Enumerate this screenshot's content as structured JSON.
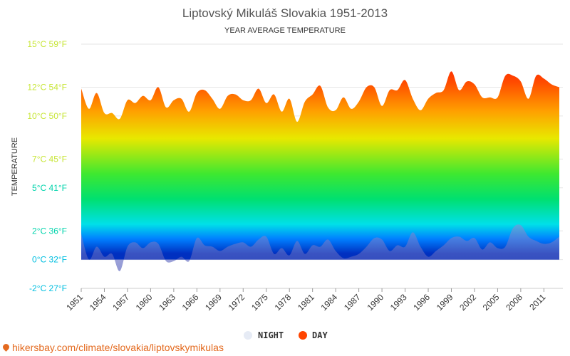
{
  "chart_data": {
    "type": "area",
    "title": "Liptovský Mikuláš Slovakia 1951-2013",
    "subtitle": "YEAR AVERAGE TEMPERATURE",
    "ylabel": "TEMPERATURE",
    "xlabel": "",
    "ylim": [
      -2,
      15
    ],
    "y_ticks": [
      {
        "value": 15,
        "label": "15°C 59°F",
        "color": "#c8e639"
      },
      {
        "value": 12,
        "label": "12°C 54°F",
        "color": "#c8e639"
      },
      {
        "value": 10,
        "label": "10°C 50°F",
        "color": "#c8e639"
      },
      {
        "value": 7,
        "label": "7°C 45°F",
        "color": "#c8e639"
      },
      {
        "value": 5,
        "label": "5°C 41°F",
        "color": "#00d4ac"
      },
      {
        "value": 2,
        "label": "2°C 36°F",
        "color": "#00d4ac"
      },
      {
        "value": 0,
        "label": "0°C 32°F",
        "color": "#00bfe0"
      },
      {
        "value": -2,
        "label": "-2°C 27°F",
        "color": "#00bfe0"
      }
    ],
    "x_tick_labels": [
      "1951",
      "1954",
      "1957",
      "1960",
      "1963",
      "1966",
      "1969",
      "1972",
      "1975",
      "1978",
      "1981",
      "1984",
      "1987",
      "1990",
      "1993",
      "1996",
      "1999",
      "2002",
      "2005",
      "2008",
      "2011"
    ],
    "x": [
      1951,
      1952,
      1953,
      1954,
      1955,
      1956,
      1957,
      1958,
      1959,
      1960,
      1961,
      1962,
      1963,
      1964,
      1965,
      1966,
      1967,
      1968,
      1969,
      1970,
      1971,
      1972,
      1973,
      1974,
      1975,
      1976,
      1977,
      1978,
      1979,
      1980,
      1981,
      1982,
      1983,
      1984,
      1985,
      1986,
      1987,
      1988,
      1989,
      1990,
      1991,
      1992,
      1993,
      1994,
      1995,
      1996,
      1997,
      1998,
      1999,
      2000,
      2001,
      2002,
      2003,
      2004,
      2005,
      2006,
      2007,
      2008,
      2009,
      2010,
      2011,
      2012,
      2013
    ],
    "series": [
      {
        "name": "DAY",
        "color": "#ff4500",
        "values": [
          11.9,
          10.5,
          11.6,
          10.2,
          10.2,
          9.8,
          11.1,
          10.9,
          11.4,
          11.1,
          12.0,
          10.6,
          11.1,
          11.2,
          10.3,
          11.6,
          11.8,
          11.2,
          10.5,
          11.4,
          11.5,
          11.1,
          11.1,
          11.9,
          10.9,
          11.5,
          10.3,
          11.2,
          9.6,
          11.0,
          11.5,
          12.1,
          10.6,
          10.4,
          11.3,
          10.5,
          11.0,
          12.0,
          12.0,
          10.7,
          11.8,
          11.8,
          12.5,
          11.2,
          10.4,
          11.2,
          11.6,
          11.8,
          13.1,
          11.8,
          12.4,
          12.2,
          11.3,
          11.3,
          11.3,
          12.8,
          12.8,
          12.4,
          11.2,
          12.8,
          12.6,
          12.2,
          12.0
        ]
      },
      {
        "name": "NIGHT",
        "color": "#e6ebf5",
        "values": [
          1.8,
          0.0,
          0.9,
          0.2,
          0.4,
          -0.8,
          0.9,
          1.2,
          0.8,
          1.2,
          1.1,
          -0.1,
          -0.1,
          0.2,
          -0.1,
          1.5,
          1.0,
          0.9,
          0.6,
          0.9,
          1.1,
          1.2,
          0.9,
          1.4,
          1.6,
          0.4,
          0.8,
          0.3,
          1.3,
          0.4,
          1.0,
          0.9,
          1.4,
          0.6,
          0.1,
          0.2,
          0.4,
          0.9,
          1.5,
          1.4,
          0.6,
          1.0,
          0.9,
          1.9,
          0.9,
          0.2,
          0.6,
          1.0,
          1.5,
          1.6,
          1.3,
          1.5,
          0.7,
          1.2,
          0.8,
          0.9,
          2.2,
          2.4,
          1.6,
          1.3,
          1.1,
          1.2,
          1.6
        ]
      }
    ],
    "grid": true,
    "legend_position": "bottom"
  },
  "legend": {
    "night_label": "NIGHT",
    "day_label": "DAY",
    "night_color": "#e6ebf5",
    "day_color": "#ff4500"
  },
  "source_text": "hikersbay.com/climate/slovakia/liptovskymikulas"
}
